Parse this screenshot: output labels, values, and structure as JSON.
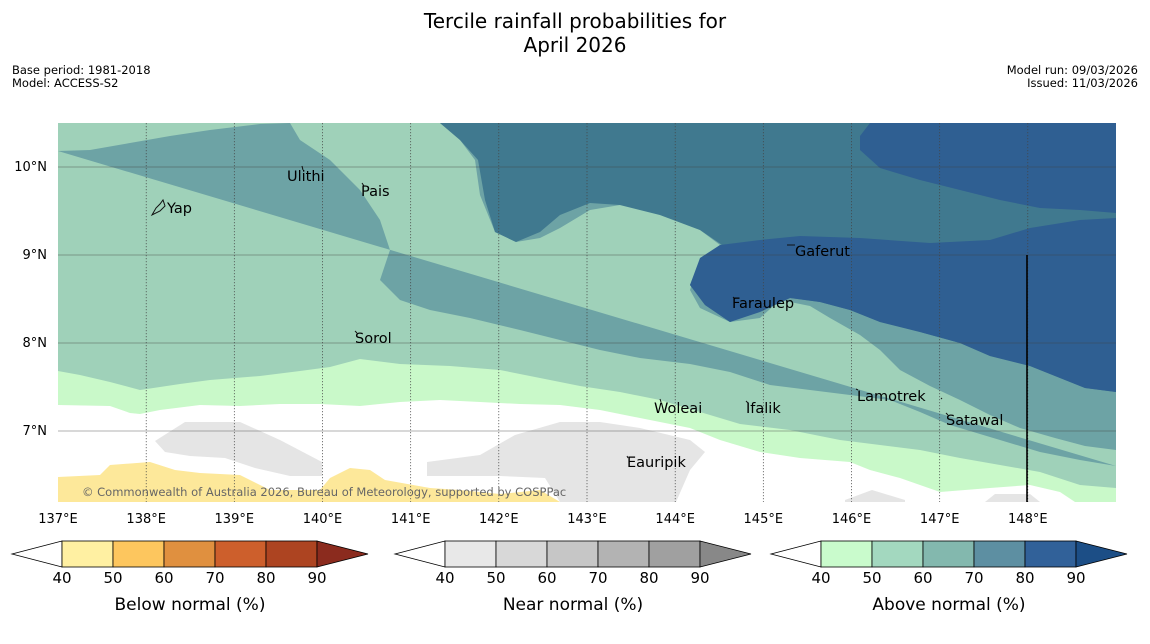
{
  "header": {
    "title_line1": "Tercile rainfall probabilities for",
    "title_line2": "April 2026",
    "base_period": "Base period: 1981-2018",
    "model": "Model: ACCESS-S2",
    "model_run": "Model run: 09/03/2026",
    "issued": "Issued: 11/03/2026"
  },
  "map": {
    "lon_range": [
      137.0,
      149.0
    ],
    "lat_range": [
      6.2,
      10.5
    ],
    "x_ticks": [
      "137°E",
      "138°E",
      "139°E",
      "140°E",
      "141°E",
      "142°E",
      "143°E",
      "144°E",
      "145°E",
      "146°E",
      "147°E",
      "148°E"
    ],
    "y_ticks": [
      "10°N",
      "9°N",
      "8°N",
      "7°N"
    ],
    "places": [
      {
        "name": "Ulithi",
        "lon": 139.72,
        "lat": 9.9
      },
      {
        "name": "Pais",
        "lon": 140.43,
        "lat": 9.73
      },
      {
        "name": "Yap",
        "lon": 138.13,
        "lat": 9.52
      },
      {
        "name": "Gaferut",
        "lon": 145.38,
        "lat": 9.04
      },
      {
        "name": "Faraulep",
        "lon": 144.64,
        "lat": 8.45
      },
      {
        "name": "Sorol",
        "lon": 140.39,
        "lat": 8.06
      },
      {
        "name": "Lamotrek",
        "lon": 146.06,
        "lat": 7.38
      },
      {
        "name": "Woleai",
        "lon": 143.91,
        "lat": 7.3
      },
      {
        "name": "Ifalik",
        "lon": 144.95,
        "lat": 7.3
      },
      {
        "name": "Satawal",
        "lon": 147.06,
        "lat": 7.13
      },
      {
        "name": "Eauripik",
        "lon": 143.45,
        "lat": 6.67
      }
    ],
    "copyright": "© Commonwealth of Australia 2026, Bureau of Meteorology, supported by COSPPac",
    "colors": {
      "above_50": "#9fd1b9",
      "above_60": "#6da3a5",
      "above_70": "#40798f",
      "above_80": "#2f5f92",
      "above_40": "#c9f9c9",
      "near_40": "#e5e5e5",
      "below_40": "#fde89a",
      "background": "#ffffff"
    }
  },
  "colorbars": [
    {
      "label": "Below normal (%)",
      "ticks": [
        "40",
        "50",
        "60",
        "70",
        "80",
        "90"
      ],
      "colors": [
        "#fff0a2",
        "#fdc65e",
        "#e0903f",
        "#cd5f2c",
        "#ad4421"
      ],
      "end_color": "#8b2b1e"
    },
    {
      "label": "Near normal (%)",
      "ticks": [
        "40",
        "50",
        "60",
        "70",
        "80",
        "90"
      ],
      "colors": [
        "#e8e8e8",
        "#d8d8d8",
        "#c6c6c6",
        "#b3b3b3",
        "#a0a0a0"
      ],
      "end_color": "#888888"
    },
    {
      "label": "Above normal (%)",
      "ticks": [
        "40",
        "50",
        "60",
        "70",
        "80",
        "90"
      ],
      "colors": [
        "#c9fbcc",
        "#a3d8bf",
        "#83b8ae",
        "#5d8fa2",
        "#316199"
      ],
      "end_color": "#1c4e86"
    }
  ]
}
